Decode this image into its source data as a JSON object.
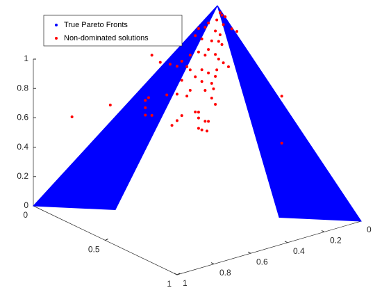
{
  "chart_data": {
    "type": "scatter3d",
    "xlim": [
      0,
      1
    ],
    "ylim": [
      0,
      1
    ],
    "zlim": [
      0,
      1
    ],
    "xticks": [
      0,
      0.5,
      1
    ],
    "yticks": [
      0,
      0.2,
      0.4,
      0.6,
      0.8,
      1
    ],
    "zticks": [
      0,
      0.2,
      0.4,
      0.6,
      0.8,
      1
    ],
    "legend": "upper left",
    "series": [
      {
        "name": "True Pareto Fronts",
        "color": "#0000ff",
        "x": [
          0,
          0,
          0.25,
          null,
          0,
          1,
          0.75
        ],
        "y": [
          0,
          1,
          0.75,
          null,
          0,
          0,
          0.25
        ],
        "z": [
          1,
          0,
          0,
          null,
          1,
          0,
          0
        ]
      },
      {
        "name": "Non-dominated solutions",
        "color": "#ff0000",
        "x": [
          0.39,
          0.39,
          0.38,
          0.4,
          0.36,
          0.33,
          0.35,
          0.37,
          0.39,
          0.4,
          0.42,
          0.43,
          0.32,
          0.34,
          0.37,
          0.38,
          0.39,
          0.36,
          0.33,
          0.31,
          0.35,
          0.37,
          0.38,
          0.4,
          0.29,
          0.3,
          0.27,
          0.26,
          0.31,
          0.34,
          0.36,
          0.37,
          0.32,
          0.29,
          0.34,
          0.37,
          0.37,
          0.35,
          0.31,
          0.27,
          0.25,
          0.2,
          0.19,
          0.23,
          0.37,
          0.37,
          0.32,
          0.33,
          0.29,
          0.27,
          0.26,
          0.19,
          0.19,
          0.21,
          0.1,
          0.0,
          0.35,
          0.34,
          0.35,
          0.36,
          0.55,
          0.55,
          0.21,
          0.41,
          0.33,
          0.33,
          0.3,
          0.38
        ],
        "y": [
          0.29,
          0.28,
          0.3,
          0.27,
          0.33,
          0.36,
          0.34,
          0.3,
          0.29,
          0.28,
          0.25,
          0.23,
          0.37,
          0.35,
          0.32,
          0.29,
          0.28,
          0.33,
          0.36,
          0.39,
          0.34,
          0.3,
          0.29,
          0.28,
          0.42,
          0.4,
          0.43,
          0.46,
          0.39,
          0.35,
          0.33,
          0.3,
          0.37,
          0.42,
          0.35,
          0.32,
          0.31,
          0.34,
          0.39,
          0.43,
          0.47,
          0.53,
          0.54,
          0.49,
          0.32,
          0.3,
          0.37,
          0.36,
          0.42,
          0.43,
          0.45,
          0.54,
          0.54,
          0.52,
          0.66,
          0.79,
          0.34,
          0.35,
          0.33,
          0.33,
          0.08,
          0.08,
          0.52,
          0.26,
          0.36,
          0.36,
          0.4,
          0.3
        ],
        "z": [
          1.24,
          1.22,
          1.19,
          1.21,
          1.17,
          1.13,
          1.14,
          1.11,
          1.09,
          1.16,
          1.13,
          1.11,
          1.08,
          1.06,
          1.05,
          1.04,
          1.02,
          0.99,
          0.97,
          0.95,
          0.95,
          0.95,
          0.92,
          0.9,
          0.91,
          0.87,
          0.87,
          0.89,
          0.85,
          0.85,
          0.83,
          0.8,
          0.8,
          0.78,
          0.77,
          0.76,
          0.72,
          0.71,
          0.71,
          0.68,
          0.68,
          0.66,
          0.64,
          0.9,
          0.66,
          0.61,
          0.56,
          0.52,
          0.54,
          0.5,
          0.47,
          0.59,
          0.54,
          0.54,
          0.61,
          0.53,
          0.5,
          0.44,
          0.43,
          0.5,
          0.67,
          0.35,
          0.95,
          0.87,
          0.45,
          0.56,
          0.67,
          0.85
        ]
      }
    ]
  }
}
